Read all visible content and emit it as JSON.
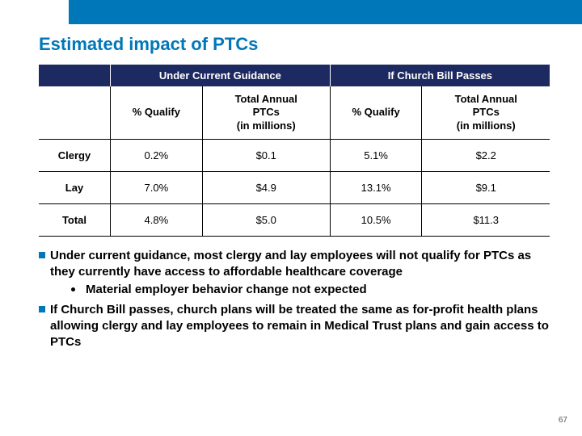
{
  "title": "Estimated impact of PTCs",
  "table": {
    "group_headers": [
      "Under Current Guidance",
      "If Church Bill Passes"
    ],
    "sub_headers": {
      "qualify": "% Qualify",
      "annual": "Total Annual\nPTCs\n(in millions)"
    },
    "rows": [
      {
        "label": "Clergy",
        "q1": "0.2%",
        "p1": "$0.1",
        "q2": "5.1%",
        "p2": "$2.2"
      },
      {
        "label": "Lay",
        "q1": "7.0%",
        "p1": "$4.9",
        "q2": "13.1%",
        "p2": "$9.1"
      },
      {
        "label": "Total",
        "q1": "4.8%",
        "p1": "$5.0",
        "q2": "10.5%",
        "p2": "$11.3"
      }
    ]
  },
  "bullets": {
    "b1": "Under current guidance, most clergy and lay employees will not qualify for PTCs as they currently have access to affordable healthcare coverage",
    "b1_sub": "Material employer behavior change not expected",
    "b2": "If Church Bill passes, church plans will be treated the same as for-profit health plans allowing clergy and lay employees to remain in Medical Trust plans and gain access to PTCs"
  },
  "page_number": "67",
  "colors": {
    "accent": "#0077b8",
    "header_bg": "#1d2961"
  }
}
